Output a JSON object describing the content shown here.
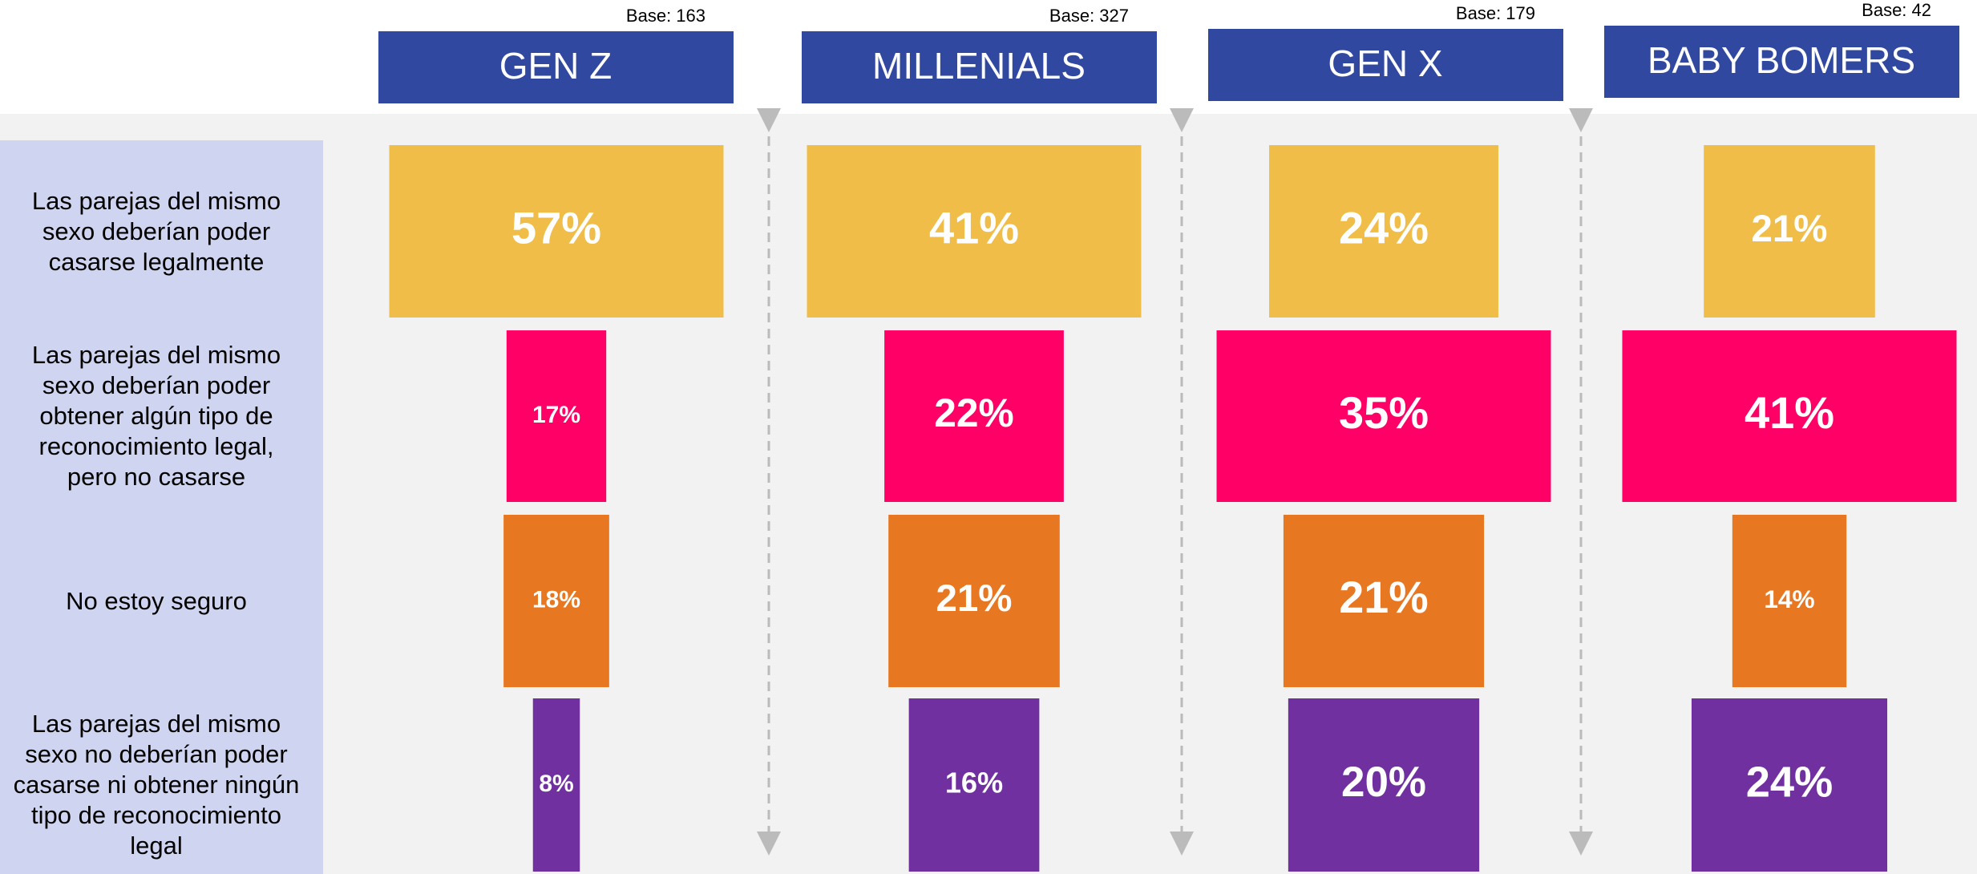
{
  "chart_data": {
    "type": "bar",
    "categories": [
      "Las parejas del mismo sexo deberían poder casarse legalmente",
      "Las parejas del mismo sexo deberían poder obtener algún tipo de reconocimiento legal, pero no casarse",
      "No estoy seguro",
      "Las parejas del mismo sexo no deberían poder casarse ni obtener ningún tipo de reconocimiento legal"
    ],
    "colors": [
      "#f0be48",
      "#ff0066",
      "#e87722",
      "#7030a0"
    ],
    "series": [
      {
        "name": "GEN Z",
        "base": "Base: 163",
        "values": [
          57,
          17,
          18,
          8
        ],
        "value_labels": [
          "57%",
          "17%",
          "18%",
          "8%"
        ]
      },
      {
        "name": "MILLENIALS",
        "base": "Base: 327",
        "values": [
          41,
          22,
          21,
          16
        ],
        "value_labels": [
          "41%",
          "22%",
          "21%",
          "16%"
        ]
      },
      {
        "name": "GEN X",
        "base": "Base: 179",
        "values": [
          24,
          35,
          21,
          20
        ],
        "value_labels": [
          "24%",
          "35%",
          "21%",
          "20%"
        ]
      },
      {
        "name": "BABY BOMERS",
        "base": "Base: 42",
        "values": [
          21,
          41,
          14,
          24
        ],
        "value_labels": [
          "21%",
          "41%",
          "14%",
          "24%"
        ]
      }
    ]
  }
}
